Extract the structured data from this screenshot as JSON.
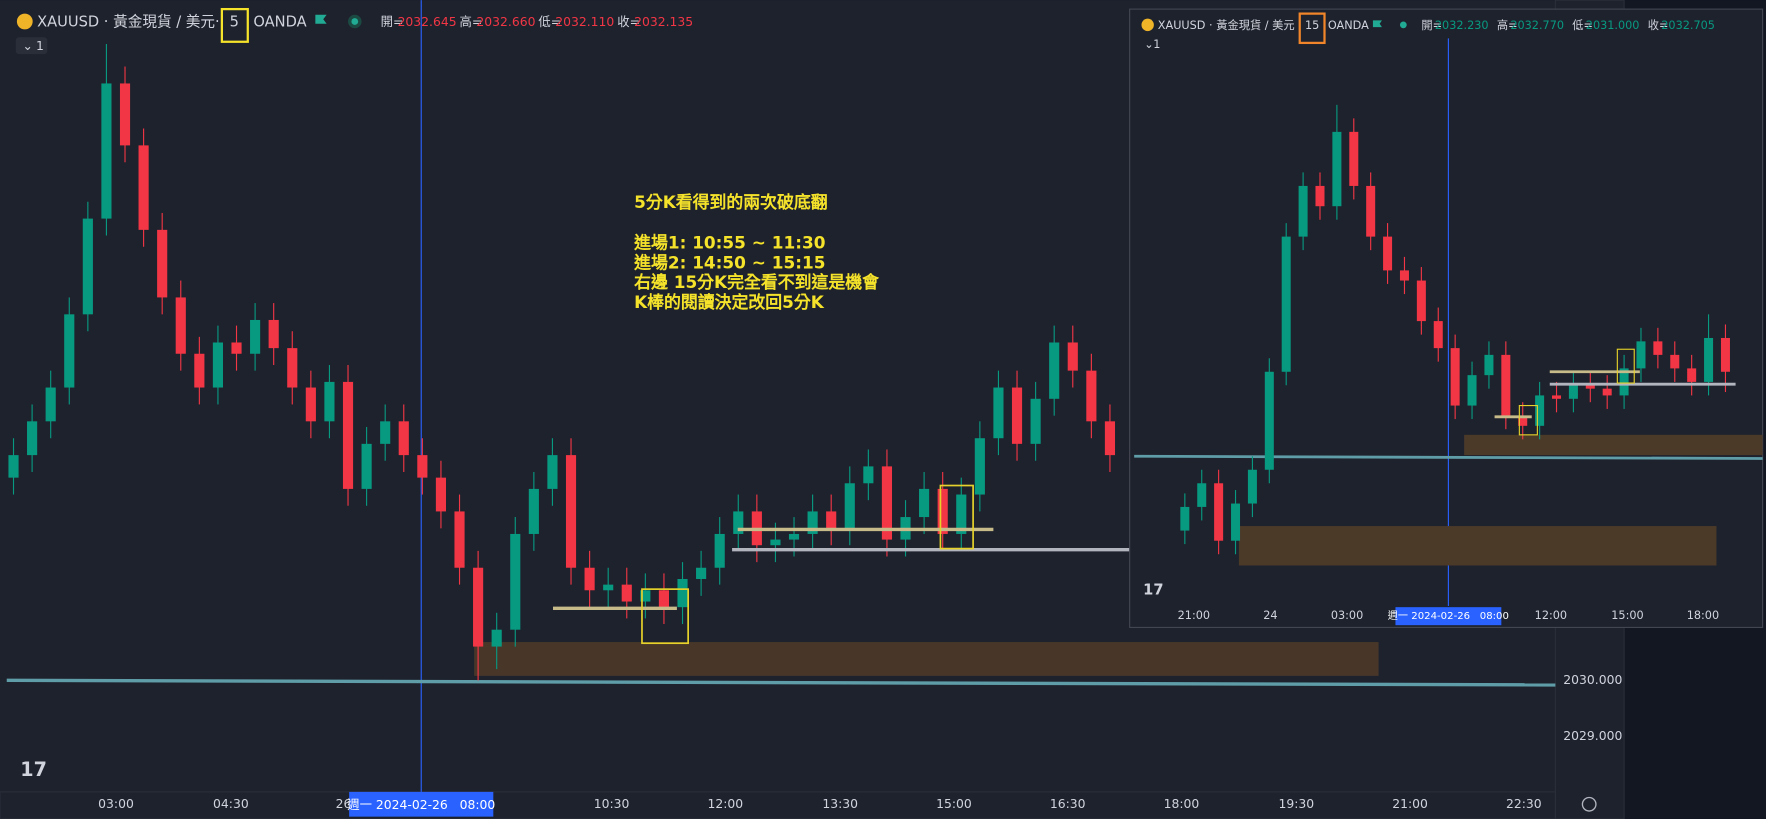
{
  "main": {
    "symbol": "XAUUSD · 黃金現貨 / 美元·",
    "interval": "5",
    "exchange": "OANDA",
    "ohlc": [
      {
        "label": "開=",
        "value": "2032.645"
      },
      {
        "label": "高=",
        "value": "2032.660"
      },
      {
        "label": "低=",
        "value": "2032.110"
      },
      {
        "label": "收=",
        "value": "2032.135"
      }
    ],
    "pane": "1",
    "price_labels": [
      "2030.000",
      "2029.000"
    ],
    "time_labels": [
      "03:00",
      "04:30",
      "26",
      "10:30",
      "12:00",
      "13:30",
      "15:00",
      "16:30",
      "18:00",
      "19:30",
      "21:00",
      "22:30"
    ],
    "crosshair_time": "週一 2024-02-26   08:00",
    "annotation": [
      "5分K看得到的兩次破底翻",
      "進場1: 10:55 ~ 11:30",
      "進場2: 14:50 ~ 15:15",
      "右邊 15分K完全看不到這是機會",
      "K棒的閱讀決定改回5分K"
    ],
    "candles": {
      "open": [
        2033.6,
        2034.0,
        2034.6,
        2035.2,
        2036.5,
        2038.2,
        2040.6,
        2039.5,
        2038.0,
        2036.8,
        2035.8,
        2035.2,
        2036.0,
        2035.8,
        2036.4,
        2035.9,
        2035.2,
        2034.6,
        2035.3,
        2033.4,
        2034.2,
        2034.6,
        2034.0,
        2033.6,
        2033.0,
        2032.0,
        2030.6,
        2030.9,
        2032.6,
        2033.4,
        2034.0,
        2032.0,
        2031.6,
        2031.7,
        2031.4,
        2031.6,
        2031.3,
        2031.8,
        2032.0,
        2032.6,
        2033.0,
        2032.4,
        2032.5,
        2032.6,
        2033.0,
        2032.7,
        2033.5,
        2033.8,
        2032.5,
        2032.9,
        2033.4,
        2032.6,
        2033.3,
        2034.3,
        2035.2,
        2034.2,
        2035.0,
        2036.0,
        2035.5,
        2034.6
      ],
      "high": [
        2034.3,
        2034.9,
        2035.5,
        2036.8,
        2038.5,
        2041.3,
        2040.9,
        2039.8,
        2038.3,
        2037.1,
        2036.1,
        2036.3,
        2036.3,
        2036.7,
        2036.7,
        2036.2,
        2035.5,
        2035.6,
        2035.6,
        2034.5,
        2034.9,
        2034.9,
        2034.3,
        2033.9,
        2033.3,
        2032.3,
        2031.2,
        2032.9,
        2033.7,
        2034.3,
        2034.3,
        2032.3,
        2032.0,
        2032.0,
        2031.9,
        2031.9,
        2032.1,
        2032.3,
        2032.9,
        2033.3,
        2033.3,
        2032.8,
        2032.9,
        2033.3,
        2033.3,
        2033.8,
        2034.1,
        2034.1,
        2033.2,
        2033.7,
        2033.7,
        2033.6,
        2034.6,
        2035.5,
        2035.5,
        2035.3,
        2036.3,
        2036.3,
        2035.8,
        2034.9
      ],
      "low": [
        2033.3,
        2033.7,
        2034.3,
        2034.9,
        2036.2,
        2037.9,
        2039.2,
        2037.7,
        2036.5,
        2035.5,
        2034.9,
        2034.9,
        2035.5,
        2035.5,
        2035.6,
        2034.9,
        2034.3,
        2034.3,
        2033.1,
        2033.1,
        2033.9,
        2033.7,
        2033.3,
        2032.7,
        2031.7,
        2030.0,
        2030.2,
        2030.6,
        2032.3,
        2033.1,
        2031.7,
        2031.3,
        2031.3,
        2031.1,
        2031.1,
        2031.0,
        2031.0,
        2031.5,
        2031.7,
        2032.3,
        2032.1,
        2032.1,
        2032.2,
        2032.3,
        2032.4,
        2032.4,
        2033.2,
        2032.2,
        2032.2,
        2032.6,
        2032.3,
        2032.3,
        2033.0,
        2034.0,
        2033.9,
        2033.9,
        2034.7,
        2035.2,
        2034.3,
        2033.7
      ],
      "close": [
        2034.0,
        2034.6,
        2035.2,
        2036.5,
        2038.2,
        2040.6,
        2039.5,
        2038.0,
        2036.8,
        2035.8,
        2035.2,
        2036.0,
        2035.8,
        2036.4,
        2035.9,
        2035.2,
        2034.6,
        2035.3,
        2033.4,
        2034.2,
        2034.6,
        2034.0,
        2033.6,
        2033.0,
        2032.0,
        2030.6,
        2030.9,
        2032.6,
        2033.4,
        2034.0,
        2032.0,
        2031.6,
        2031.7,
        2031.4,
        2031.6,
        2031.3,
        2031.8,
        2032.0,
        2032.6,
        2033.0,
        2032.4,
        2032.5,
        2032.6,
        2033.0,
        2032.7,
        2033.5,
        2033.8,
        2032.5,
        2032.9,
        2033.4,
        2032.6,
        2033.3,
        2034.3,
        2035.2,
        2034.2,
        2035.0,
        2036.0,
        2035.5,
        2034.6,
        2034.0
      ]
    }
  },
  "inset": {
    "symbol": "XAUUSD · 黃金現貨 / 美元",
    "interval": "15",
    "exchange": "OANDA",
    "ohlc": [
      {
        "label": "開=",
        "value": "2032.230"
      },
      {
        "label": "高=",
        "value": "2032.770"
      },
      {
        "label": "低=",
        "value": "2031.000"
      },
      {
        "label": "收=",
        "value": "2032.705"
      }
    ],
    "pane": "1",
    "time_labels": [
      "21:00",
      "24",
      "03:00",
      "12:00",
      "15:00",
      "18:00"
    ],
    "crosshair_time": "週一 2024-02-26   08:00",
    "candles": {
      "open": [
        2027.8,
        2028.5,
        2029.2,
        2027.5,
        2028.6,
        2029.6,
        2032.5,
        2036.5,
        2038.0,
        2037.4,
        2039.6,
        2038.0,
        2036.5,
        2035.5,
        2035.2,
        2034.0,
        2033.2,
        2031.5,
        2032.4,
        2033.0,
        2031.2,
        2030.9,
        2031.8,
        2031.7,
        2032.1,
        2032.0,
        2031.8,
        2032.6,
        2033.4,
        2033.0,
        2032.6,
        2032.2,
        2033.5
      ],
      "high": [
        2028.9,
        2029.6,
        2029.6,
        2029.0,
        2030.0,
        2032.9,
        2036.9,
        2038.4,
        2038.4,
        2040.4,
        2040.0,
        2038.4,
        2036.9,
        2035.9,
        2035.6,
        2034.4,
        2033.6,
        2032.8,
        2033.4,
        2033.4,
        2031.6,
        2032.2,
        2032.2,
        2032.5,
        2032.5,
        2032.4,
        2033.0,
        2033.8,
        2033.8,
        2033.4,
        2033.0,
        2034.2,
        2033.9
      ],
      "low": [
        2027.4,
        2028.1,
        2027.1,
        2027.1,
        2028.2,
        2029.2,
        2032.1,
        2036.1,
        2037.0,
        2037.0,
        2037.6,
        2036.1,
        2035.1,
        2034.8,
        2033.6,
        2032.8,
        2031.1,
        2031.1,
        2032.0,
        2030.8,
        2030.5,
        2030.5,
        2031.3,
        2031.3,
        2031.6,
        2031.4,
        2031.4,
        2032.2,
        2032.6,
        2032.2,
        2031.8,
        2031.8,
        2031.9
      ],
      "close": [
        2028.5,
        2029.2,
        2027.5,
        2028.6,
        2029.6,
        2032.5,
        2036.5,
        2038.0,
        2037.4,
        2039.6,
        2038.0,
        2036.5,
        2035.5,
        2035.2,
        2034.0,
        2033.2,
        2031.5,
        2032.4,
        2033.0,
        2031.2,
        2030.9,
        2031.8,
        2031.7,
        2032.1,
        2032.0,
        2031.8,
        2032.6,
        2033.4,
        2033.0,
        2032.6,
        2032.2,
        2033.5,
        2032.5
      ]
    }
  }
}
